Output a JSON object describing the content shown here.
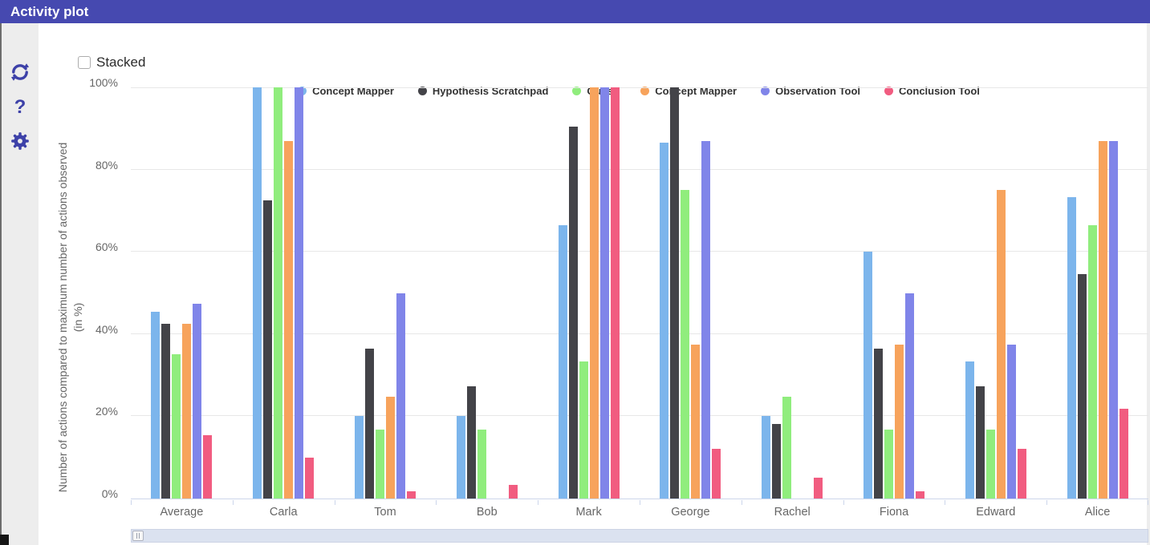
{
  "header": {
    "title": "Activity plot"
  },
  "sidebar": {
    "icons": [
      {
        "name": "refresh-icon"
      },
      {
        "name": "help-icon",
        "glyph": "?"
      },
      {
        "name": "settings-gear-icon"
      }
    ]
  },
  "controls": {
    "stacked_label": "Stacked",
    "stacked_checked": false
  },
  "chart_data": {
    "type": "bar",
    "title": "",
    "categories": [
      "Average",
      "Carla",
      "Tom",
      "Bob",
      "Mark",
      "George",
      "Rachel",
      "Fiona",
      "Edward",
      "Alice"
    ],
    "series": [
      {
        "name": "Concept Mapper",
        "color": "#7cb5ec",
        "values": [
          45.5,
          100,
          20,
          20,
          66.5,
          86.5,
          20,
          60,
          33.3,
          73.3
        ]
      },
      {
        "name": "Hypothesis Scratchpad",
        "color": "#434348",
        "values": [
          42.5,
          72.5,
          36.4,
          27.3,
          90.5,
          100,
          18.2,
          36.4,
          27.3,
          54.5
        ]
      },
      {
        "name": "Quest",
        "color": "#90ed7d",
        "values": [
          35,
          100,
          16.7,
          16.7,
          33.3,
          75,
          24.8,
          16.7,
          16.7,
          66.5
        ]
      },
      {
        "name": "Concept Mapper",
        "color": "#f7a35c",
        "values": [
          42.5,
          87,
          24.8,
          0,
          100,
          37.5,
          0,
          37.5,
          75,
          87
        ]
      },
      {
        "name": "Observation Tool",
        "color": "#8085e9",
        "values": [
          47.3,
          100,
          50,
          0,
          100,
          87,
          0,
          50,
          37.5,
          87
        ]
      },
      {
        "name": "Conclusion Tool",
        "color": "#f15c80",
        "values": [
          15.5,
          10,
          1.8,
          3.3,
          100,
          12,
          5,
          1.8,
          12,
          21.8
        ]
      }
    ],
    "ylabel_line1": "Number of actions compared to maximum number of actions observed",
    "ylabel_line2": "(in %)",
    "yticks": [
      "0%",
      "20%",
      "40%",
      "60%",
      "80%",
      "100%"
    ],
    "ytick_values": [
      0,
      20,
      40,
      60,
      80,
      100
    ],
    "ylim": [
      0,
      100
    ],
    "grid": true,
    "legend_position": "top"
  },
  "colors": {
    "titlebar_bg": "#4649b0",
    "sidebar_icon": "#3d41a8",
    "axis_line": "#ccd6eb",
    "grid_line": "#e7e7e7",
    "axis_text": "#666666",
    "legend_text": "#333333"
  }
}
